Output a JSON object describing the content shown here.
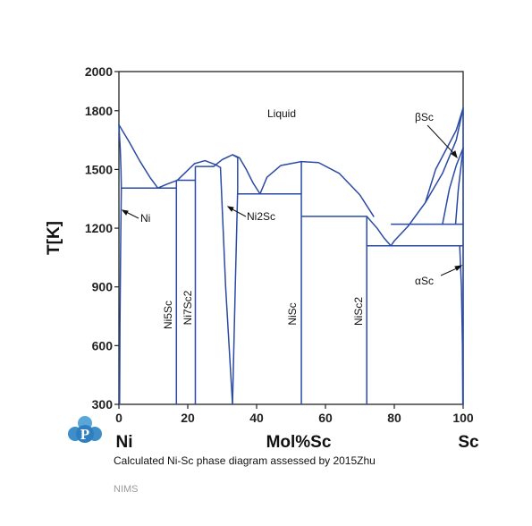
{
  "chart_data": {
    "type": "phase-diagram",
    "xlabel": "Mol%Sc",
    "ylabel": "T[K]",
    "x_end_labels": {
      "left": "Ni",
      "right": "Sc"
    },
    "xlim": [
      0,
      100
    ],
    "ylim": [
      300,
      2000
    ],
    "x_ticks": [
      "0",
      "20",
      "40",
      "60",
      "80",
      "100"
    ],
    "y_ticks": [
      "300",
      "600",
      "900",
      "1200",
      "1500",
      "1800",
      "2000"
    ],
    "line_color": "#2a4aa6",
    "region_labels": {
      "liquid": "Liquid",
      "ni": "Ni",
      "ni2sc": "Ni2Sc",
      "beta_sc": "βSc",
      "alpha_sc": "αSc",
      "ni5sc": "Ni5Sc",
      "ni7sc2": "Ni7Sc2",
      "nisc": "NiSc",
      "nisc2": "NiSc2"
    },
    "curves": [
      {
        "name": "liquidus-ni",
        "points": [
          [
            0,
            1728
          ],
          [
            3,
            1640
          ],
          [
            6,
            1545
          ],
          [
            9,
            1460
          ],
          [
            11.3,
            1405
          ]
        ]
      },
      {
        "name": "solidus-ni",
        "points": [
          [
            0,
            1728
          ],
          [
            0.4,
            1600
          ],
          [
            0.6,
            1500
          ],
          [
            0.7,
            1405
          ]
        ]
      },
      {
        "name": "solvus-ni",
        "points": [
          [
            0.7,
            1405
          ],
          [
            0.5,
            1100
          ],
          [
            0.3,
            700
          ],
          [
            0.2,
            300
          ]
        ]
      },
      {
        "name": "liquidus-ni5sc-peritectic",
        "points": [
          [
            11.3,
            1405
          ],
          [
            14,
            1425
          ],
          [
            17,
            1445
          ],
          [
            22,
            1530
          ],
          [
            25,
            1545
          ],
          [
            28,
            1525
          ],
          [
            29.5,
            1510
          ]
        ]
      },
      {
        "name": "liquidus-ni2sc-left",
        "points": [
          [
            27.5,
            1515
          ],
          [
            30,
            1550
          ],
          [
            33,
            1575
          ],
          [
            34.5,
            1560
          ]
        ]
      },
      {
        "name": "liquidus-ni2sc-right",
        "points": [
          [
            33,
            1575
          ],
          [
            35,
            1560
          ],
          [
            37,
            1500
          ],
          [
            39,
            1430
          ],
          [
            41,
            1375
          ]
        ]
      },
      {
        "name": "liquidus-nisc",
        "points": [
          [
            41,
            1375
          ],
          [
            43,
            1460
          ],
          [
            47,
            1520
          ],
          [
            53,
            1540
          ],
          [
            58,
            1535
          ],
          [
            64,
            1480
          ],
          [
            70,
            1370
          ],
          [
            74,
            1260
          ]
        ]
      },
      {
        "name": "liquidus-nisc2-eutectic",
        "points": [
          [
            72,
            1260
          ],
          [
            75,
            1200
          ],
          [
            77,
            1150
          ],
          [
            79,
            1110
          ],
          [
            80,
            1135
          ],
          [
            84,
            1210
          ],
          [
            89,
            1330
          ],
          [
            94,
            1480
          ],
          [
            98,
            1650
          ],
          [
            100,
            1814
          ]
        ]
      },
      {
        "name": "beta-sc-liquidus",
        "points": [
          [
            89,
            1330
          ],
          [
            92,
            1500
          ],
          [
            95,
            1600
          ],
          [
            98,
            1700
          ],
          [
            100,
            1814
          ]
        ]
      },
      {
        "name": "beta-sc-solidus",
        "points": [
          [
            94,
            1220
          ],
          [
            96,
            1400
          ],
          [
            98,
            1520
          ],
          [
            100,
            1610
          ]
        ]
      },
      {
        "name": "beta-sc-inner",
        "points": [
          [
            97.8,
            1220
          ],
          [
            98.6,
            1400
          ],
          [
            99.4,
            1520
          ],
          [
            100,
            1610
          ]
        ]
      },
      {
        "name": "alpha-sc-solvus",
        "points": [
          [
            99,
            1110
          ],
          [
            99.5,
            900
          ],
          [
            99.8,
            600
          ],
          [
            99.9,
            300
          ]
        ]
      },
      {
        "name": "ni2sc-left-boundary",
        "points": [
          [
            29.5,
            1510
          ],
          [
            31,
            900
          ],
          [
            33,
            300
          ]
        ]
      },
      {
        "name": "ni2sc-right-boundary",
        "points": [
          [
            33,
            300
          ],
          [
            33.8,
            900
          ],
          [
            34.5,
            1400
          ],
          [
            34.5,
            1560
          ]
        ]
      }
    ],
    "segments": [
      {
        "name": "eutectic-ni-ni5sc",
        "from": [
          0.7,
          1405
        ],
        "to": [
          16.7,
          1405
        ]
      },
      {
        "name": "peritectic-ni5sc",
        "from": [
          16.7,
          1445
        ],
        "to": [
          22.2,
          1445
        ]
      },
      {
        "name": "peritectic-ni7sc2",
        "from": [
          22.2,
          1515
        ],
        "to": [
          27.5,
          1515
        ]
      },
      {
        "name": "eutectic-ni2sc-nisc",
        "from": [
          34.5,
          1375
        ],
        "to": [
          53,
          1375
        ]
      },
      {
        "name": "peritectic-nisc2",
        "from": [
          53,
          1260
        ],
        "to": [
          72,
          1260
        ]
      },
      {
        "name": "eutectic-nisc2-sc",
        "from": [
          72,
          1110
        ],
        "to": [
          100,
          1110
        ]
      },
      {
        "name": "beta-alpha-transition",
        "from": [
          79,
          1220
        ],
        "to": [
          100,
          1220
        ]
      },
      {
        "name": "ni5sc-compound",
        "from": [
          16.7,
          300
        ],
        "to": [
          16.7,
          1445
        ]
      },
      {
        "name": "ni7sc2-compound",
        "from": [
          22.2,
          300
        ],
        "to": [
          22.2,
          1515
        ]
      },
      {
        "name": "nisc-compound",
        "from": [
          53,
          300
        ],
        "to": [
          53,
          1540
        ]
      },
      {
        "name": "nisc2-compound",
        "from": [
          72,
          300
        ],
        "to": [
          72,
          1260
        ]
      },
      {
        "name": "sc-edge",
        "from": [
          100,
          300
        ],
        "to": [
          100,
          1814
        ]
      }
    ]
  },
  "caption": "Calculated Ni-Sc phase diagram assessed by 2015Zhu",
  "footer": "NIMS"
}
